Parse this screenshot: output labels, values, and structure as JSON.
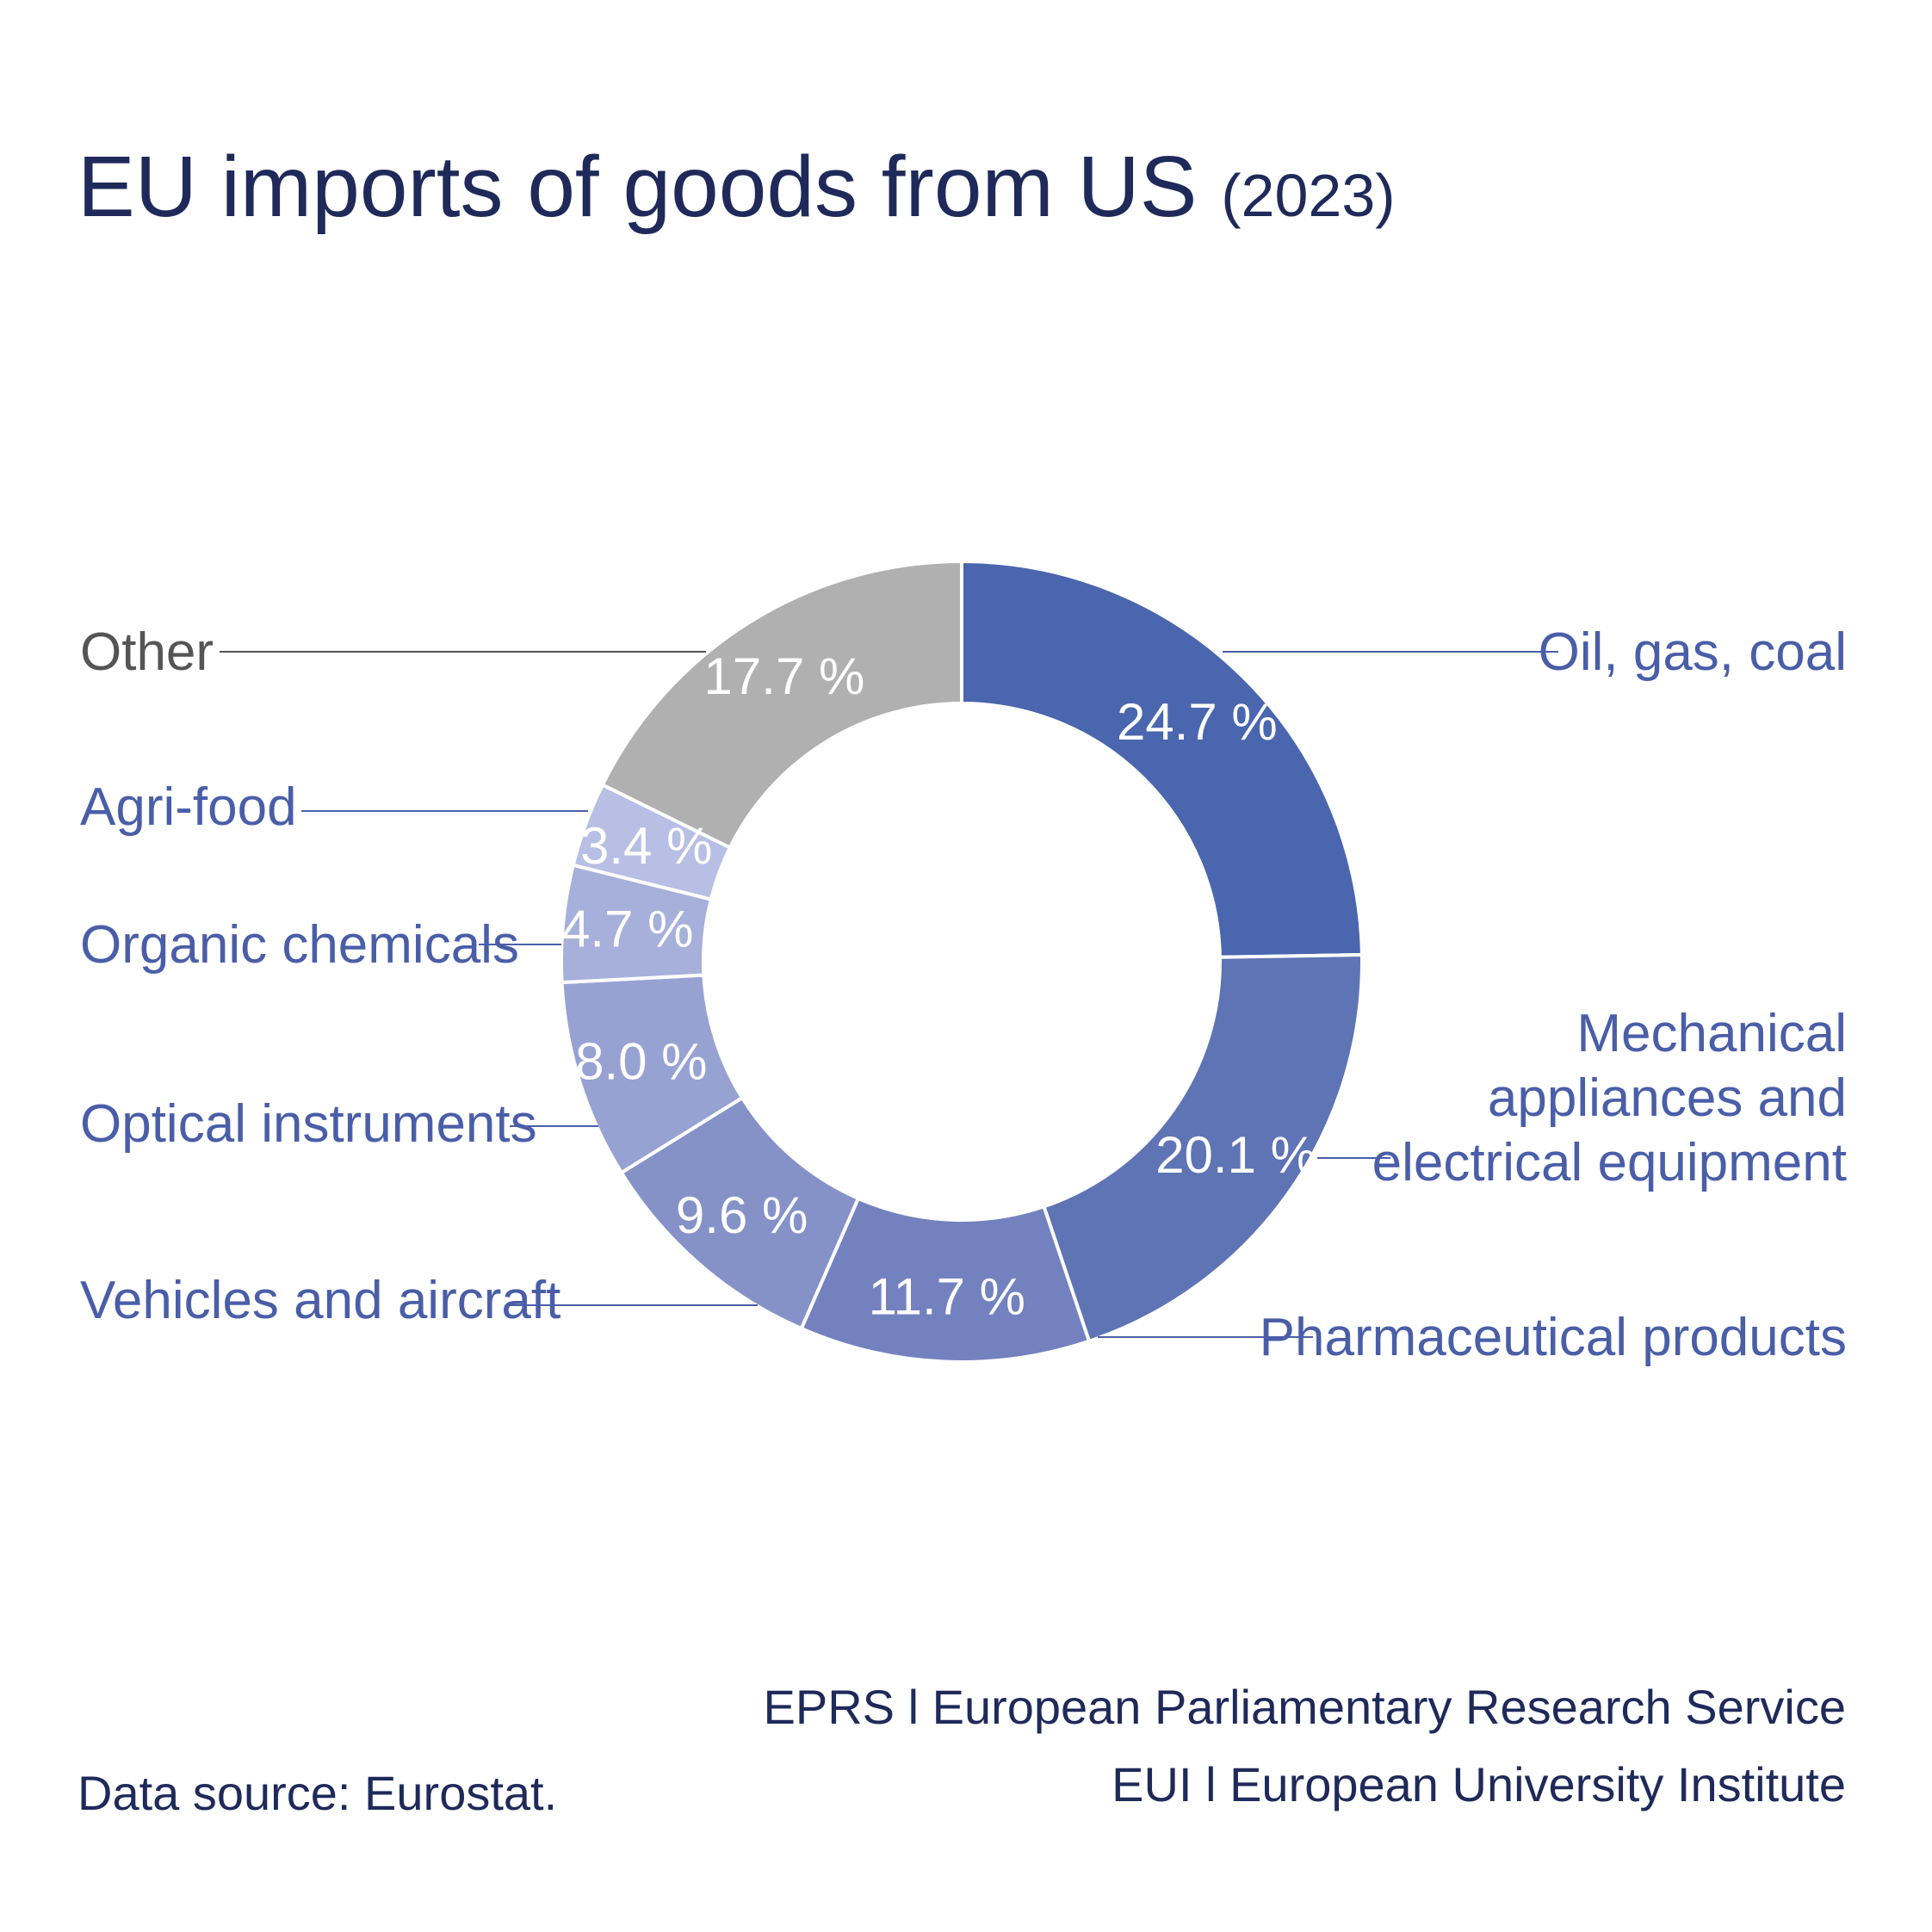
{
  "title": {
    "main": "EU imports of goods from US",
    "year": "(2023)"
  },
  "chart_data": {
    "type": "pie",
    "donut": true,
    "slices": [
      {
        "label": "Oil, gas, coal",
        "value": 24.7,
        "value_label": "24.7 %",
        "color": "#4a66ae",
        "label_color": "#4a5ea8"
      },
      {
        "label": "Mechanical appliances and electrical equipment",
        "label_lines": [
          "Mechanical",
          "appliances and",
          "electrical equipment"
        ],
        "value": 20.1,
        "value_label": "20.1 %",
        "color": "#5f74b5",
        "label_color": "#4a5ea8"
      },
      {
        "label": "Pharmaceutical products",
        "value": 11.7,
        "value_label": "11.7 %",
        "color": "#7382bf",
        "label_color": "#4a5ea8"
      },
      {
        "label": "Vehicles and aircraft",
        "value": 9.6,
        "value_label": "9.6 %",
        "color": "#8592c8",
        "label_color": "#4a5ea8"
      },
      {
        "label": "Optical instruments",
        "value": 8.0,
        "value_label": "8.0 %",
        "color": "#97a2d3",
        "label_color": "#4a5ea8"
      },
      {
        "label": "Organic chemicals",
        "value": 4.7,
        "value_label": "4.7 %",
        "color": "#a6b0da",
        "label_color": "#4a5ea8"
      },
      {
        "label": "Agri-food",
        "value": 3.4,
        "value_label": "3.4 %",
        "color": "#b8bfe4",
        "label_color": "#4a5ea8"
      },
      {
        "label": "Other",
        "value": 17.7,
        "value_label": "17.7 %",
        "color": "#b0b0b0",
        "label_color": "#555555"
      }
    ]
  },
  "footer": {
    "source": "Data source: Eurostat.",
    "credit_1": "EPRS l European Parliamentary Research Service",
    "credit_2": "EUI l European University Institute"
  }
}
